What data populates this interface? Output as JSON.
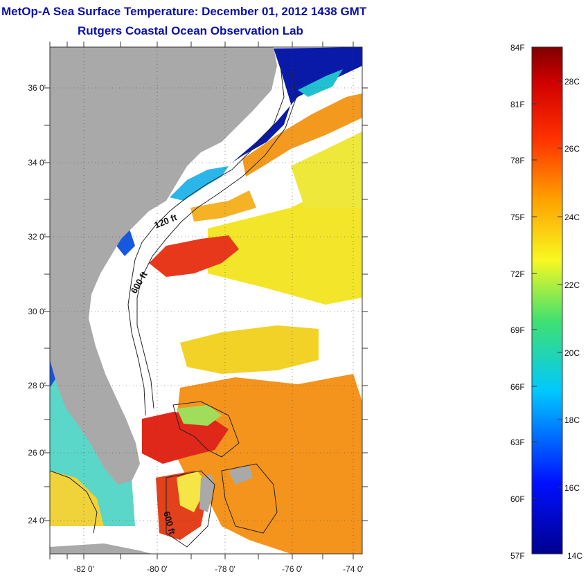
{
  "title": "MetOp-A Sea Surface Temperature:  December 01, 2012 1438 GMT",
  "subtitle": "Rutgers Coastal Ocean Observation Lab",
  "colors": {
    "title": "#0b10a8",
    "land": "#a9a9a9",
    "cloud": "#ffffff",
    "warm": "#e8321c",
    "mid": "#f7d820",
    "cool": "#0a1aa8"
  },
  "map": {
    "lat_labels": [
      "36 0'",
      "34 0'",
      "32 0'",
      "30 0'",
      "28 0'",
      "26 0'",
      "24 0'"
    ],
    "lon_labels": [
      "-82 0'",
      "-80 0'",
      "-78 0'",
      "-76 0'",
      "-74 0'"
    ],
    "contour_labels": [
      "120 ft",
      "600 ft",
      "600 ft"
    ]
  },
  "colorbar": {
    "fahrenheit_labels": [
      "84F",
      "81F",
      "78F",
      "75F",
      "72F",
      "69F",
      "66F",
      "63F",
      "60F",
      "57F"
    ],
    "celsius_labels": [
      "28C",
      "26C",
      "24C",
      "22C",
      "20C",
      "18C",
      "16C",
      "14C"
    ],
    "min_c": 14,
    "max_c": 29
  }
}
